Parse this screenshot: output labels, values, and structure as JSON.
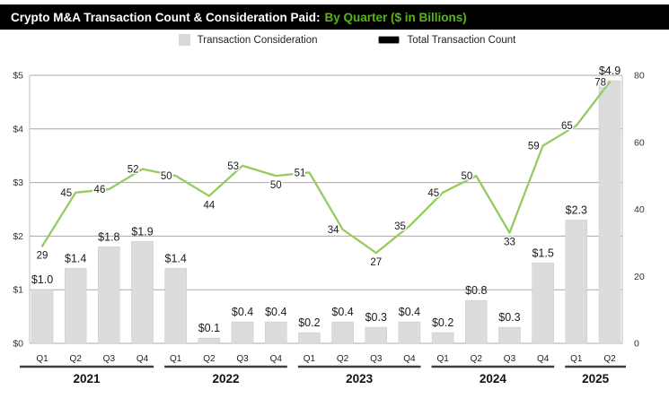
{
  "title": {
    "prefix": "Crypto M&A Transaction Count & Consideration Paid:",
    "highlight": "By Quarter ($ in Billions)"
  },
  "legend": {
    "consideration": "Transaction Consideration",
    "count": "Total Transaction Count"
  },
  "colors": {
    "title_bg": "#000000",
    "title_text": "#ffffff",
    "accent_green": "#55b80e",
    "line_green": "#96cb5f",
    "bar_fill": "#dcdcdc",
    "bar_stroke": "#c8c8c8",
    "grid": "#a8a8a8",
    "axis_line": "#bdbdbd",
    "year_rule": "#3f3f3f",
    "text": "#1a1a1a"
  },
  "chart_data": {
    "type": "combo-bar-line",
    "grid": true,
    "legend_position": "top",
    "years": [
      {
        "year": "2021",
        "quarters": [
          "Q1",
          "Q2",
          "Q3",
          "Q4"
        ]
      },
      {
        "year": "2022",
        "quarters": [
          "Q1",
          "Q2",
          "Q3",
          "Q4"
        ]
      },
      {
        "year": "2023",
        "quarters": [
          "Q1",
          "Q2",
          "Q3",
          "Q4"
        ]
      },
      {
        "year": "2024",
        "quarters": [
          "Q1",
          "Q2",
          "Q3",
          "Q4"
        ]
      },
      {
        "year": "2025",
        "quarters": [
          "Q1",
          "Q2"
        ]
      }
    ],
    "categories": [
      "2021 Q1",
      "2021 Q2",
      "2021 Q3",
      "2021 Q4",
      "2022 Q1",
      "2022 Q2",
      "2022 Q3",
      "2022 Q4",
      "2023 Q1",
      "2023 Q2",
      "2023 Q3",
      "2023 Q4",
      "2024 Q1",
      "2024 Q2",
      "2024 Q3",
      "2024 Q4",
      "2025 Q1",
      "2025 Q2"
    ],
    "series": [
      {
        "name": "Transaction Consideration",
        "type": "bar",
        "axis": "left",
        "unit": "$ in Billions",
        "values": [
          1.0,
          1.4,
          1.8,
          1.9,
          1.4,
          0.1,
          0.4,
          0.4,
          0.2,
          0.4,
          0.3,
          0.4,
          0.2,
          0.8,
          0.3,
          1.5,
          2.3,
          4.9
        ],
        "labels": [
          "$1.0",
          "$1.4",
          "$1.8",
          "$1.9",
          "$1.4",
          "$0.1",
          "$0.4",
          "$0.4",
          "$0.2",
          "$0.4",
          "$0.3",
          "$0.4",
          "$0.2",
          "$0.8",
          "$0.3",
          "$1.5",
          "$2.3",
          "$4.9"
        ]
      },
      {
        "name": "Total Transaction Count",
        "type": "line",
        "axis": "right",
        "unit": "count",
        "values": [
          29,
          45,
          46,
          52,
          50,
          44,
          53,
          50,
          51,
          34,
          27,
          35,
          45,
          50,
          33,
          59,
          65,
          78
        ],
        "labels": [
          "29",
          "45",
          "46",
          "52",
          "50",
          "44",
          "53",
          "50",
          "51",
          "34",
          "27",
          "35",
          "45",
          "50",
          "33",
          "59",
          "65",
          "78"
        ]
      }
    ],
    "left_axis": {
      "ticks": [
        "$0",
        "$1",
        "$2",
        "$3",
        "$4",
        "$5"
      ],
      "min": 0,
      "max": 5
    },
    "right_axis": {
      "ticks": [
        "0",
        "20",
        "40",
        "60",
        "80"
      ],
      "min": 0,
      "max": 80
    }
  }
}
